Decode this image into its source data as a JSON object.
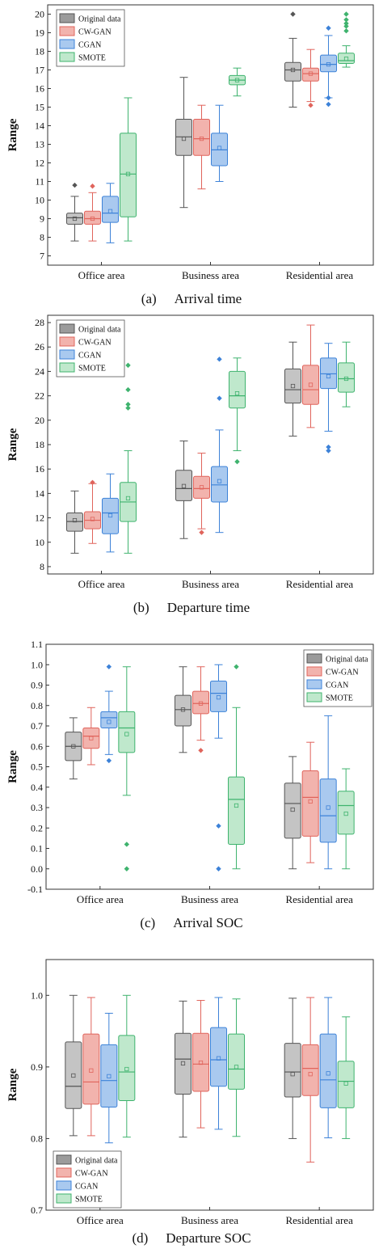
{
  "figure": {
    "categories": [
      "Office area",
      "Business area",
      "Residential area"
    ],
    "legend": [
      "Original data",
      "CW-GAN",
      "CGAN",
      "SMOTE"
    ],
    "ylabel": "Range",
    "series_colors": {
      "Original data": {
        "fill": "#c4c4c4",
        "stroke": "#555555"
      },
      "CW-GAN": {
        "fill": "#f2b3ad",
        "stroke": "#e0645c"
      },
      "CGAN": {
        "fill": "#a9c9ef",
        "stroke": "#3d82d8"
      },
      "SMOTE": {
        "fill": "#bfe8cc",
        "stroke": "#3fb36e"
      }
    }
  },
  "captions": [
    {
      "letter": "(a)",
      "text": "Arrival time"
    },
    {
      "letter": "(b)",
      "text": "Departure time"
    },
    {
      "letter": "(c)",
      "text": "Arrival SOC"
    },
    {
      "letter": "(d)",
      "text": "Departure SOC"
    }
  ],
  "chart_data": [
    {
      "type": "box",
      "title": "Arrival time",
      "ylabel": "Range",
      "ylim": [
        6.5,
        20.5
      ],
      "yticks": [
        7,
        8,
        9,
        10,
        11,
        12,
        13,
        14,
        15,
        16,
        17,
        18,
        19,
        20
      ],
      "legend_position": "top-left",
      "categories": [
        "Office area",
        "Business area",
        "Residential area"
      ],
      "series": [
        {
          "name": "Original data",
          "boxes": [
            {
              "q1": 8.7,
              "median": 9.05,
              "q3": 9.3,
              "whisker_low": 7.8,
              "whisker_high": 10.2,
              "mean": 9.0,
              "outliers": [
                10.8
              ]
            },
            {
              "q1": 12.4,
              "median": 13.4,
              "q3": 14.35,
              "whisker_low": 9.6,
              "whisker_high": 16.6,
              "mean": 13.3,
              "outliers": []
            },
            {
              "q1": 16.4,
              "median": 17.0,
              "q3": 17.4,
              "whisker_low": 15.0,
              "whisker_high": 18.7,
              "mean": 17.0,
              "outliers": [
                20.0
              ]
            }
          ]
        },
        {
          "name": "CW-GAN",
          "boxes": [
            {
              "q1": 8.7,
              "median": 9.0,
              "q3": 9.4,
              "whisker_low": 7.8,
              "whisker_high": 10.4,
              "mean": 9.0,
              "outliers": [
                10.75
              ]
            },
            {
              "q1": 12.4,
              "median": 13.3,
              "q3": 14.35,
              "whisker_low": 10.6,
              "whisker_high": 15.1,
              "mean": 13.3,
              "outliers": []
            },
            {
              "q1": 16.4,
              "median": 16.8,
              "q3": 17.1,
              "whisker_low": 15.3,
              "whisker_high": 18.1,
              "mean": 16.8,
              "outliers": [
                15.1
              ]
            }
          ]
        },
        {
          "name": "CGAN",
          "boxes": [
            {
              "q1": 8.8,
              "median": 9.3,
              "q3": 10.2,
              "whisker_low": 7.7,
              "whisker_high": 10.9,
              "mean": 9.4,
              "outliers": []
            },
            {
              "q1": 11.85,
              "median": 12.7,
              "q3": 13.6,
              "whisker_low": 11.0,
              "whisker_high": 15.1,
              "mean": 12.8,
              "outliers": []
            },
            {
              "q1": 16.9,
              "median": 17.3,
              "q3": 17.8,
              "whisker_low": 15.5,
              "whisker_high": 18.85,
              "mean": 17.3,
              "outliers": [
                15.15,
                15.5,
                19.25
              ]
            }
          ]
        },
        {
          "name": "SMOTE",
          "boxes": [
            {
              "q1": 9.1,
              "median": 11.4,
              "q3": 13.6,
              "whisker_low": 7.8,
              "whisker_high": 15.5,
              "mean": 11.4,
              "outliers": []
            },
            {
              "q1": 16.2,
              "median": 16.45,
              "q3": 16.7,
              "whisker_low": 15.6,
              "whisker_high": 17.1,
              "mean": 16.45,
              "outliers": []
            },
            {
              "q1": 17.35,
              "median": 17.5,
              "q3": 17.9,
              "whisker_low": 17.15,
              "whisker_high": 18.3,
              "mean": 17.6,
              "outliers": [
                19.1,
                19.35,
                19.5,
                19.7,
                20.0
              ]
            }
          ]
        }
      ]
    },
    {
      "type": "box",
      "title": "Departure time",
      "ylabel": "Range",
      "ylim": [
        7.4,
        28.6
      ],
      "yticks": [
        8,
        10,
        12,
        14,
        16,
        18,
        20,
        22,
        24,
        26,
        28
      ],
      "legend_position": "top-left",
      "categories": [
        "Office area",
        "Business area",
        "Residential area"
      ],
      "series": [
        {
          "name": "Original data",
          "boxes": [
            {
              "q1": 10.9,
              "median": 11.7,
              "q3": 12.4,
              "whisker_low": 9.1,
              "whisker_high": 14.2,
              "mean": 11.8,
              "outliers": []
            },
            {
              "q1": 13.4,
              "median": 14.4,
              "q3": 15.9,
              "whisker_low": 10.3,
              "whisker_high": 18.3,
              "mean": 14.6,
              "outliers": []
            },
            {
              "q1": 21.4,
              "median": 22.5,
              "q3": 24.2,
              "whisker_low": 18.7,
              "whisker_high": 26.4,
              "mean": 22.8,
              "outliers": []
            }
          ]
        },
        {
          "name": "CW-GAN",
          "boxes": [
            {
              "q1": 11.1,
              "median": 11.8,
              "q3": 12.5,
              "whisker_low": 9.9,
              "whisker_high": 14.8,
              "mean": 11.9,
              "outliers": [
                14.9
              ]
            },
            {
              "q1": 13.6,
              "median": 14.4,
              "q3": 15.4,
              "whisker_low": 11.1,
              "whisker_high": 17.3,
              "mean": 14.5,
              "outliers": [
                10.8
              ]
            },
            {
              "q1": 21.3,
              "median": 22.5,
              "q3": 24.5,
              "whisker_low": 19.4,
              "whisker_high": 27.8,
              "mean": 22.9,
              "outliers": []
            }
          ]
        },
        {
          "name": "CGAN",
          "boxes": [
            {
              "q1": 10.7,
              "median": 12.4,
              "q3": 13.6,
              "whisker_low": 9.2,
              "whisker_high": 15.6,
              "mean": 12.2,
              "outliers": []
            },
            {
              "q1": 13.3,
              "median": 14.7,
              "q3": 16.2,
              "whisker_low": 10.8,
              "whisker_high": 19.2,
              "mean": 15.0,
              "outliers": [
                21.8,
                25.0
              ]
            },
            {
              "q1": 22.6,
              "median": 23.8,
              "q3": 25.1,
              "whisker_low": 19.1,
              "whisker_high": 26.3,
              "mean": 23.6,
              "outliers": [
                17.5,
                17.8
              ]
            }
          ]
        },
        {
          "name": "SMOTE",
          "boxes": [
            {
              "q1": 11.7,
              "median": 13.3,
              "q3": 14.9,
              "whisker_low": 9.1,
              "whisker_high": 17.5,
              "mean": 13.6,
              "outliers": [
                21.0,
                21.3,
                22.5,
                24.5
              ]
            },
            {
              "q1": 21.0,
              "median": 22.0,
              "q3": 24.0,
              "whisker_low": 17.5,
              "whisker_high": 25.1,
              "mean": 22.2,
              "outliers": [
                16.6
              ]
            },
            {
              "q1": 22.3,
              "median": 23.4,
              "q3": 24.7,
              "whisker_low": 21.1,
              "whisker_high": 26.4,
              "mean": 23.4,
              "outliers": []
            }
          ]
        }
      ]
    },
    {
      "type": "box",
      "title": "Arrival SOC",
      "ylabel": "Range",
      "ylim": [
        -0.1,
        1.1
      ],
      "yticks": [
        -0.1,
        0.0,
        0.1,
        0.2,
        0.3,
        0.4,
        0.5,
        0.6,
        0.7,
        0.8,
        0.9,
        1.0,
        1.1
      ],
      "legend_position": "top-right",
      "categories": [
        "Office area",
        "Business area",
        "Residential area"
      ],
      "series": [
        {
          "name": "Original data",
          "boxes": [
            {
              "q1": 0.53,
              "median": 0.6,
              "q3": 0.67,
              "whisker_low": 0.44,
              "whisker_high": 0.74,
              "mean": 0.6,
              "outliers": []
            },
            {
              "q1": 0.7,
              "median": 0.78,
              "q3": 0.85,
              "whisker_low": 0.57,
              "whisker_high": 0.99,
              "mean": 0.78,
              "outliers": []
            },
            {
              "q1": 0.15,
              "median": 0.32,
              "q3": 0.42,
              "whisker_low": 0.0,
              "whisker_high": 0.55,
              "mean": 0.29,
              "outliers": []
            }
          ]
        },
        {
          "name": "CW-GAN",
          "boxes": [
            {
              "q1": 0.59,
              "median": 0.65,
              "q3": 0.69,
              "whisker_low": 0.51,
              "whisker_high": 0.79,
              "mean": 0.64,
              "outliers": []
            },
            {
              "q1": 0.76,
              "median": 0.81,
              "q3": 0.87,
              "whisker_low": 0.63,
              "whisker_high": 0.99,
              "mean": 0.81,
              "outliers": [
                0.58
              ]
            },
            {
              "q1": 0.16,
              "median": 0.35,
              "q3": 0.48,
              "whisker_low": 0.03,
              "whisker_high": 0.62,
              "mean": 0.33,
              "outliers": []
            }
          ]
        },
        {
          "name": "CGAN",
          "boxes": [
            {
              "q1": 0.69,
              "median": 0.74,
              "q3": 0.77,
              "whisker_low": 0.56,
              "whisker_high": 0.87,
              "mean": 0.72,
              "outliers": [
                0.53,
                0.99
              ]
            },
            {
              "q1": 0.77,
              "median": 0.86,
              "q3": 0.92,
              "whisker_low": 0.64,
              "whisker_high": 1.0,
              "mean": 0.84,
              "outliers": [
                0.21,
                0.0
              ]
            },
            {
              "q1": 0.13,
              "median": 0.26,
              "q3": 0.44,
              "whisker_low": 0.0,
              "whisker_high": 0.75,
              "mean": 0.3,
              "outliers": []
            }
          ]
        },
        {
          "name": "SMOTE",
          "boxes": [
            {
              "q1": 0.57,
              "median": 0.69,
              "q3": 0.77,
              "whisker_low": 0.36,
              "whisker_high": 0.99,
              "mean": 0.66,
              "outliers": [
                0.12,
                0.0
              ]
            },
            {
              "q1": 0.12,
              "median": 0.34,
              "q3": 0.45,
              "whisker_low": 0.0,
              "whisker_high": 0.79,
              "mean": 0.31,
              "outliers": [
                0.99
              ]
            },
            {
              "q1": 0.17,
              "median": 0.31,
              "q3": 0.38,
              "whisker_low": 0.0,
              "whisker_high": 0.49,
              "mean": 0.27,
              "outliers": []
            }
          ]
        }
      ]
    },
    {
      "type": "box",
      "title": "Departure SOC",
      "ylabel": "Range",
      "ylim": [
        0.7,
        1.05
      ],
      "yticks": [
        0.7,
        0.8,
        0.9,
        1.0
      ],
      "legend_position": "bottom-left",
      "categories": [
        "Office area",
        "Business area",
        "Residential area"
      ],
      "series": [
        {
          "name": "Original data",
          "boxes": [
            {
              "q1": 0.842,
              "median": 0.873,
              "q3": 0.935,
              "whisker_low": 0.804,
              "whisker_high": 1.0,
              "mean": 0.888,
              "outliers": []
            },
            {
              "q1": 0.862,
              "median": 0.911,
              "q3": 0.947,
              "whisker_low": 0.802,
              "whisker_high": 0.992,
              "mean": 0.905,
              "outliers": []
            },
            {
              "q1": 0.858,
              "median": 0.893,
              "q3": 0.933,
              "whisker_low": 0.8,
              "whisker_high": 0.996,
              "mean": 0.89,
              "outliers": []
            }
          ]
        },
        {
          "name": "CW-GAN",
          "boxes": [
            {
              "q1": 0.848,
              "median": 0.879,
              "q3": 0.946,
              "whisker_low": 0.804,
              "whisker_high": 0.997,
              "mean": 0.895,
              "outliers": []
            },
            {
              "q1": 0.866,
              "median": 0.904,
              "q3": 0.947,
              "whisker_low": 0.815,
              "whisker_high": 0.993,
              "mean": 0.906,
              "outliers": []
            },
            {
              "q1": 0.86,
              "median": 0.898,
              "q3": 0.931,
              "whisker_low": 0.767,
              "whisker_high": 0.997,
              "mean": 0.89,
              "outliers": []
            }
          ]
        },
        {
          "name": "CGAN",
          "boxes": [
            {
              "q1": 0.844,
              "median": 0.881,
              "q3": 0.931,
              "whisker_low": 0.794,
              "whisker_high": 0.975,
              "mean": 0.887,
              "outliers": []
            },
            {
              "q1": 0.873,
              "median": 0.91,
              "q3": 0.955,
              "whisker_low": 0.813,
              "whisker_high": 0.997,
              "mean": 0.912,
              "outliers": []
            },
            {
              "q1": 0.843,
              "median": 0.882,
              "q3": 0.946,
              "whisker_low": 0.801,
              "whisker_high": 0.997,
              "mean": 0.891,
              "outliers": []
            }
          ]
        },
        {
          "name": "SMOTE",
          "boxes": [
            {
              "q1": 0.853,
              "median": 0.893,
              "q3": 0.944,
              "whisker_low": 0.802,
              "whisker_high": 1.0,
              "mean": 0.897,
              "outliers": []
            },
            {
              "q1": 0.869,
              "median": 0.897,
              "q3": 0.946,
              "whisker_low": 0.803,
              "whisker_high": 0.995,
              "mean": 0.9,
              "outliers": []
            },
            {
              "q1": 0.843,
              "median": 0.88,
              "q3": 0.908,
              "whisker_low": 0.8,
              "whisker_high": 0.97,
              "mean": 0.877,
              "outliers": []
            }
          ]
        }
      ]
    }
  ]
}
